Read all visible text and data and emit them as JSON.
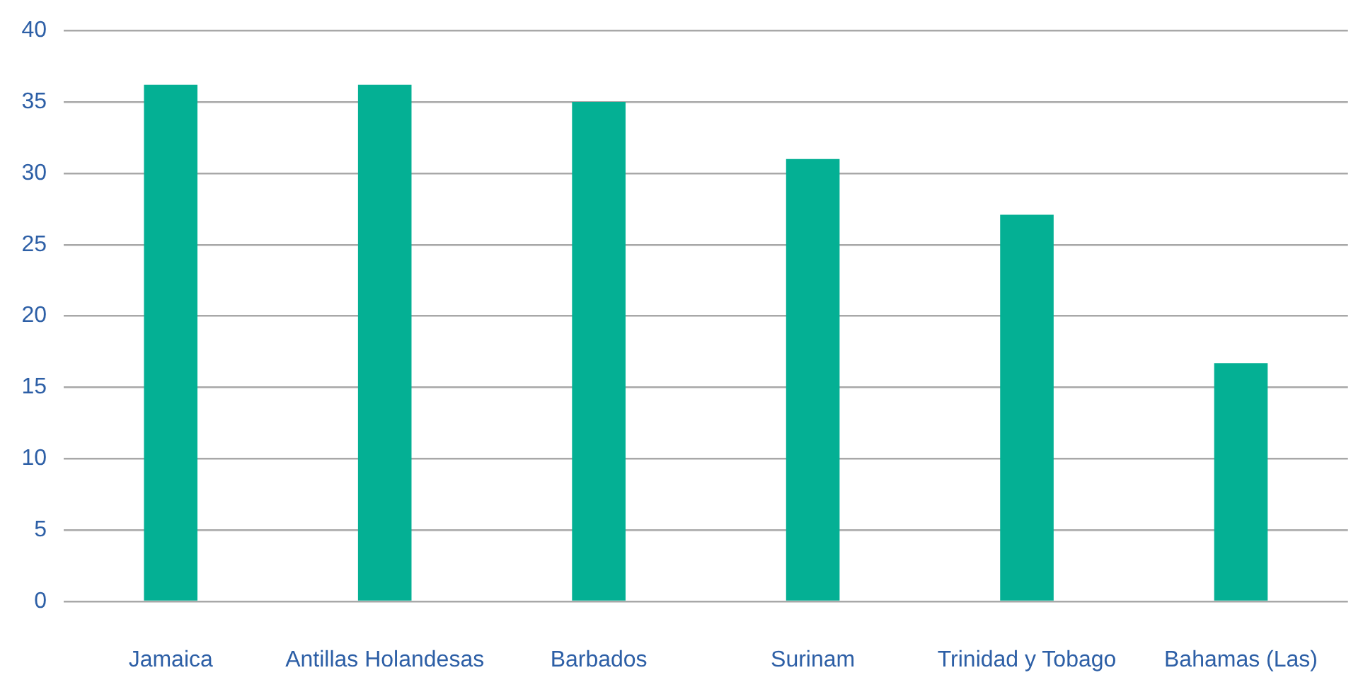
{
  "chart_data": {
    "type": "bar",
    "categories": [
      "Jamaica",
      "Antillas Holandesas",
      "Barbados",
      "Surinam",
      "Trinidad y Tobago",
      "Bahamas (Las)"
    ],
    "values": [
      36.2,
      36.2,
      35.0,
      31.0,
      27.1,
      16.7
    ],
    "color": "#04b094",
    "ylim": [
      0,
      40
    ],
    "yticks": [
      0,
      5,
      10,
      15,
      20,
      25,
      30,
      35,
      40
    ],
    "grid": "y"
  }
}
